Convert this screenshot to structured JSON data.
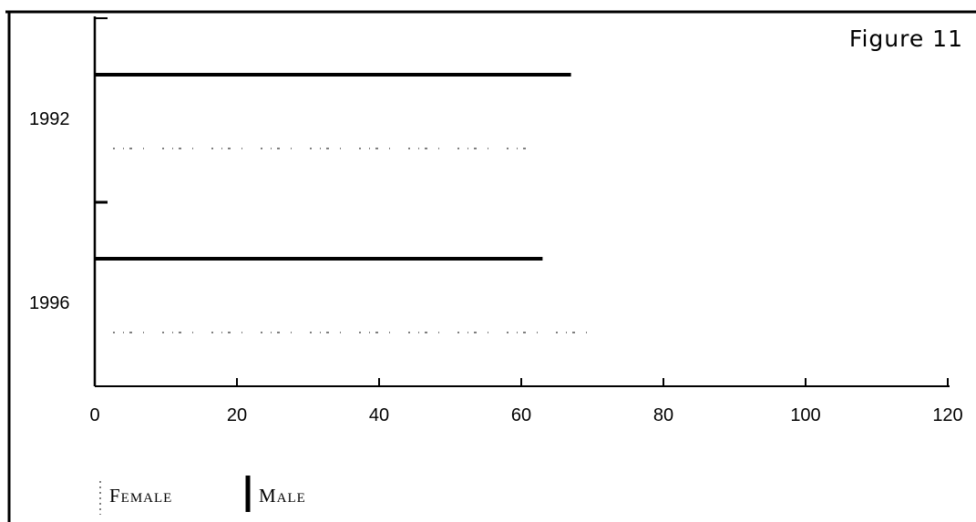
{
  "figure_label": "Figure 11",
  "chart_data": {
    "type": "bar",
    "orientation": "horizontal",
    "title": "",
    "xlabel": "",
    "ylabel": "",
    "categories": [
      "1992",
      "1996"
    ],
    "series": [
      {
        "name": "Male",
        "values": [
          67,
          63
        ],
        "style": "solid"
      },
      {
        "name": "Female",
        "values": [
          62,
          70
        ],
        "style": "dotted"
      }
    ],
    "xlim": [
      0,
      120
    ],
    "xticks": [
      0,
      20,
      40,
      60,
      80,
      100,
      120
    ],
    "xtick_labels": [
      "0",
      "20",
      "40",
      "60",
      "80",
      "100",
      "120"
    ],
    "grid": false,
    "legend": {
      "position": "bottom-left",
      "entries": [
        "Female",
        "Male"
      ]
    }
  },
  "legend_labels": {
    "female": "Female",
    "male": "Male"
  },
  "colors": {
    "male": "#000000",
    "female": "#555555",
    "axis": "#000000"
  }
}
